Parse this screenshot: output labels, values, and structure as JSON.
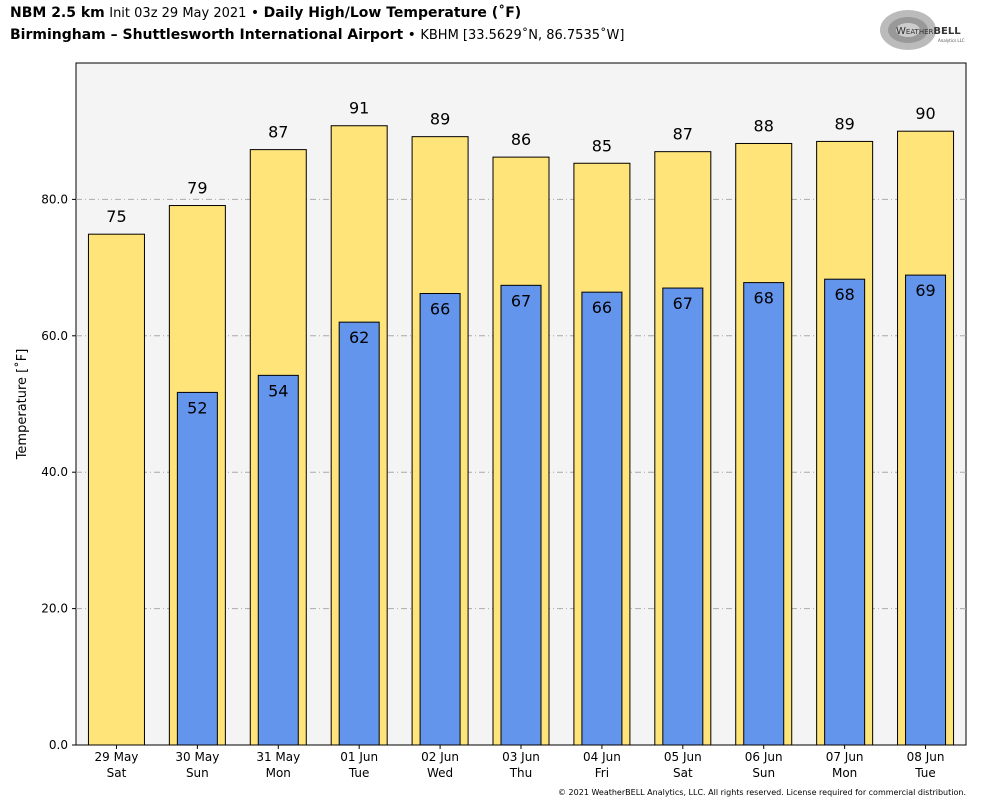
{
  "header": {
    "model": "NBM 2.5 km",
    "init": "Init 03z 29 May 2021",
    "bullet": "•",
    "product": "Daily High/Low Temperature (˚F)",
    "location": "Birmingham – Shuttlesworth International Airport",
    "station": "KBHM [33.5629˚N, 86.7535˚W]"
  },
  "logo": {
    "text": "WeatherBELL",
    "subtext": "Analytics LLC"
  },
  "footer": "© 2021 WeatherBELL Analytics, LLC. All rights reserved. License required for commercial distribution.",
  "colors": {
    "high": "#FFE47A",
    "low": "#6495ED",
    "plot_bg": "#F4F4F4"
  },
  "chart_data": {
    "type": "bar",
    "title": "Daily High/Low Temperature (˚F)",
    "xlabel": "",
    "ylabel": "Temperature [˚F]",
    "ylim": [
      0,
      100
    ],
    "yticks": [
      0,
      20,
      40,
      60,
      80
    ],
    "ytick_labels": [
      "0.0",
      "20.0",
      "40.0",
      "60.0",
      "80.0"
    ],
    "grid": true,
    "categories": [
      "29 May",
      "30 May",
      "31 May",
      "01 Jun",
      "02 Jun",
      "03 Jun",
      "04 Jun",
      "05 Jun",
      "06 Jun",
      "07 Jun",
      "08 Jun"
    ],
    "weekdays": [
      "Sat",
      "Sun",
      "Mon",
      "Tue",
      "Wed",
      "Thu",
      "Fri",
      "Sat",
      "Sun",
      "Mon",
      "Tue"
    ],
    "series": [
      {
        "name": "High",
        "values": [
          74.9,
          79.1,
          87.3,
          90.8,
          89.2,
          86.2,
          85.3,
          87.0,
          88.2,
          88.5,
          90.0
        ],
        "labels": [
          "75",
          "79",
          "87",
          "91",
          "89",
          "86",
          "85",
          "87",
          "88",
          "89",
          "90"
        ]
      },
      {
        "name": "Low",
        "values": [
          null,
          51.7,
          54.2,
          62.0,
          66.2,
          67.4,
          66.4,
          67.0,
          67.8,
          68.3,
          68.9
        ],
        "labels": [
          "",
          "52",
          "54",
          "62",
          "66",
          "67",
          "66",
          "67",
          "68",
          "68",
          "69"
        ]
      }
    ]
  }
}
